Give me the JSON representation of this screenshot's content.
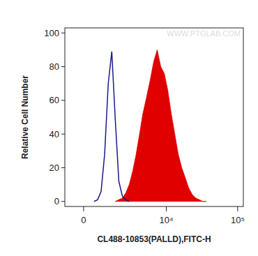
{
  "chart_data": {
    "type": "area",
    "xlabel": "CL488-10853(PALLD),FITC-H",
    "ylabel": "Relative Cell Number",
    "annotations": [
      "WWW.PTGLAB.COM"
    ],
    "x": [
      480,
      650,
      830,
      1020,
      1230,
      1450,
      1690,
      1950,
      2240,
      2540,
      2880,
      3260,
      3670,
      4120,
      4610,
      5230,
      5890,
      6620,
      7420,
      8330,
      9340,
      10460,
      11730,
      13130,
      14700,
      16460,
      18450,
      20600,
      23140,
      25900,
      29000,
      32500,
      36300
    ],
    "series": [
      {
        "type": "line",
        "color": "#1a1a8c",
        "values": [
          0,
          1,
          6,
          28,
          70,
          89,
          48,
          12,
          3,
          1,
          0,
          null,
          null,
          null,
          null,
          null,
          null,
          null,
          null,
          null,
          null,
          null,
          null,
          null,
          null,
          null,
          null,
          null,
          null,
          null,
          null,
          null,
          null
        ]
      },
      {
        "type": "area",
        "color": "#e00000",
        "values": [
          null,
          null,
          null,
          null,
          null,
          null,
          0,
          1,
          2,
          5,
          10,
          18,
          28,
          40,
          52,
          62,
          72,
          83,
          90,
          80,
          76,
          66,
          52,
          40,
          28,
          20,
          14,
          8,
          4,
          2,
          1,
          0,
          0
        ]
      }
    ],
    "xlim": [
      -900,
      120000
    ],
    "ylim": [
      -3,
      103
    ],
    "xticks": [
      0,
      {
        "value": 10000,
        "label": "10⁴"
      },
      {
        "value": 100000,
        "label": "10⁵"
      }
    ],
    "yticks": [
      0,
      20,
      40,
      60,
      80,
      100
    ]
  }
}
